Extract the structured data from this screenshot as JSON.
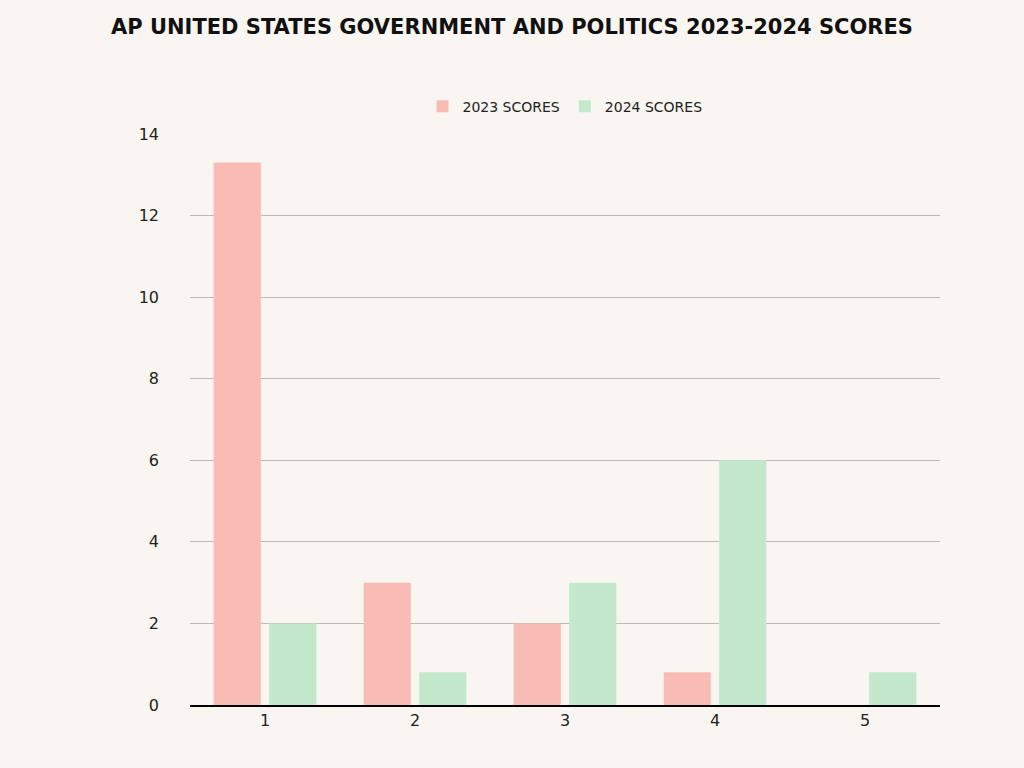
{
  "chart_data": {
    "type": "bar",
    "title": "AP UNITED STATES GOVERNMENT AND POLITICS 2023-2024 SCORES",
    "categories": [
      "1",
      "2",
      "3",
      "4",
      "5"
    ],
    "series": [
      {
        "name": "2023 SCORES",
        "color": "#f9bcb5",
        "values": [
          13.3,
          3,
          2,
          0.8,
          0
        ]
      },
      {
        "name": "2024 SCORES",
        "color": "#c4e8cc",
        "values": [
          2,
          0.8,
          3,
          6,
          0.8
        ]
      }
    ],
    "ylim": [
      0,
      14
    ],
    "yticks": [
      0,
      2,
      4,
      6,
      8,
      10,
      12,
      14
    ],
    "grid": true,
    "legend": "top"
  }
}
